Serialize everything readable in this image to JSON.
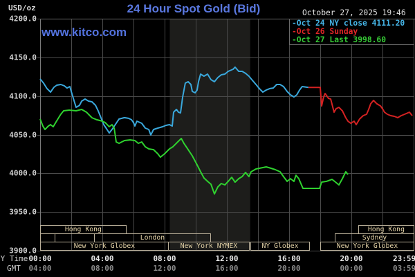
{
  "header": {
    "title": "24 Hour Spot Gold (Bid)",
    "units": "USD/oz",
    "watermark": "www.kitco.com",
    "datetime": "October 27, 2025 19:46"
  },
  "legend": [
    {
      "label": "-Oct 24 NY close 4111.20",
      "color": "#45b4e6"
    },
    {
      "label": "-Oct 26 Sunday",
      "color": "#e02626"
    },
    {
      "label": "-Oct 27 Last 3998.60",
      "color": "#36cc36"
    }
  ],
  "y_axis": {
    "ticks": [
      {
        "label": "4200.0",
        "value": 4200
      },
      {
        "label": "4150.0",
        "value": 4150
      },
      {
        "label": "4100.0",
        "value": 4100
      },
      {
        "label": "4050.0",
        "value": 4050
      },
      {
        "label": "4000.0",
        "value": 4000
      },
      {
        "label": "3950.0",
        "value": 3950
      },
      {
        "label": "3900.0",
        "value": 3900
      }
    ]
  },
  "x_axis": {
    "ny_label": "NY Time",
    "gmt_label": "GMT",
    "ticks": [
      {
        "hour": 0,
        "ny": "00:00",
        "gmt": "04:00"
      },
      {
        "hour": 4,
        "ny": "04:00",
        "gmt": "08:00"
      },
      {
        "hour": 8,
        "ny": "08:00",
        "gmt": "12:00"
      },
      {
        "hour": 12,
        "ny": "12:00",
        "gmt": "16:00"
      },
      {
        "hour": 16,
        "ny": "16:00",
        "gmt": "20:00"
      },
      {
        "hour": 20,
        "ny": "20:00",
        "gmt": "00:00"
      },
      {
        "hour": 24,
        "ny": "23:59",
        "gmt": "03:59"
      }
    ]
  },
  "sessions": [
    {
      "label": "Hong Kong",
      "start": 0,
      "end": 5.5,
      "row": 0
    },
    {
      "label": "",
      "start": 0,
      "end": 0.93,
      "row": 1
    },
    {
      "label": "London",
      "start": 3.47,
      "end": 10.93,
      "row": 1
    },
    {
      "label": "New York Globex",
      "start": 0,
      "end": 8.22,
      "row": 2
    },
    {
      "label": "New York NYMEX",
      "start": 8.22,
      "end": 13.42,
      "row": 2
    },
    {
      "label": "NY Globex",
      "start": 13.51,
      "end": 17.29,
      "row": 2
    },
    {
      "label": "Hong Kong",
      "start": 20.44,
      "end": 24,
      "row": 0
    },
    {
      "label": "Sydney",
      "start": 18.93,
      "end": 24,
      "row": 1
    },
    {
      "label": "New York Globex",
      "start": 18.0,
      "end": 24,
      "row": 2
    }
  ],
  "chart_data": {
    "type": "line",
    "title": "24 Hour Spot Gold (Bid)",
    "xlabel": "NY Time (hours)",
    "ylabel": "USD/oz",
    "xlim": [
      0,
      24
    ],
    "ylim": [
      3900,
      4200
    ],
    "grid": true,
    "legend_position": "top-right",
    "highlight_region": {
      "label": "New York NYMEX",
      "start": 8.33,
      "end": 13.5,
      "color": "#1d1d1b"
    },
    "series": [
      {
        "name": "Oct 24 NY close 4111.20",
        "color": "#3aa8dc",
        "points": [
          [
            0,
            4122.1
          ],
          [
            0.22,
            4116.7
          ],
          [
            0.44,
            4109.6
          ],
          [
            0.67,
            4105.1
          ],
          [
            0.89,
            4111.3
          ],
          [
            1.07,
            4114.0
          ],
          [
            1.33,
            4114.9
          ],
          [
            1.56,
            4113.1
          ],
          [
            1.73,
            4110.4
          ],
          [
            1.91,
            4112.2
          ],
          [
            2.04,
            4103.3
          ],
          [
            2.31,
            4085.4
          ],
          [
            2.53,
            4088.0
          ],
          [
            2.67,
            4093.4
          ],
          [
            2.89,
            4096.1
          ],
          [
            3.11,
            4093.4
          ],
          [
            3.33,
            4092.5
          ],
          [
            3.56,
            4088.0
          ],
          [
            3.73,
            4080.9
          ],
          [
            3.91,
            4071.9
          ],
          [
            4.09,
            4063.0
          ],
          [
            4.27,
            4057.6
          ],
          [
            4.44,
            4052.2
          ],
          [
            4.62,
            4056.7
          ],
          [
            4.89,
            4064.8
          ],
          [
            5.07,
            4070.2
          ],
          [
            5.42,
            4072.0
          ],
          [
            5.69,
            4071.1
          ],
          [
            5.87,
            4069.3
          ],
          [
            6.0,
            4065.7
          ],
          [
            6.09,
            4061.2
          ],
          [
            6.22,
            4067.5
          ],
          [
            6.53,
            4064.8
          ],
          [
            6.76,
            4058.5
          ],
          [
            6.98,
            4056.7
          ],
          [
            7.11,
            4049.6
          ],
          [
            7.29,
            4056.7
          ],
          [
            7.56,
            4058.5
          ],
          [
            7.87,
            4060.3
          ],
          [
            8.09,
            4062.1
          ],
          [
            8.31,
            4063.0
          ],
          [
            8.49,
            4061.2
          ],
          [
            8.58,
            4079.1
          ],
          [
            8.76,
            4082.7
          ],
          [
            8.89,
            4079.1
          ],
          [
            9.02,
            4078.2
          ],
          [
            9.16,
            4098.8
          ],
          [
            9.33,
            4116.7
          ],
          [
            9.51,
            4118.5
          ],
          [
            9.69,
            4114.9
          ],
          [
            9.78,
            4106.0
          ],
          [
            9.96,
            4104.2
          ],
          [
            10.09,
            4107.8
          ],
          [
            10.18,
            4118.5
          ],
          [
            10.31,
            4128.4
          ],
          [
            10.53,
            4125.7
          ],
          [
            10.76,
            4128.4
          ],
          [
            10.98,
            4121.2
          ],
          [
            11.2,
            4118.5
          ],
          [
            11.42,
            4123.9
          ],
          [
            11.64,
            4127.5
          ],
          [
            11.87,
            4128.4
          ],
          [
            12.09,
            4131.9
          ],
          [
            12.4,
            4134.6
          ],
          [
            12.53,
            4137.3
          ],
          [
            12.76,
            4131.9
          ],
          [
            12.98,
            4131.9
          ],
          [
            13.2,
            4129.3
          ],
          [
            13.42,
            4125.7
          ],
          [
            13.64,
            4120.3
          ],
          [
            13.87,
            4114.9
          ],
          [
            14.09,
            4109.6
          ],
          [
            14.31,
            4105.1
          ],
          [
            14.53,
            4107.8
          ],
          [
            14.76,
            4109.6
          ],
          [
            14.98,
            4110.4
          ],
          [
            15.2,
            4114.9
          ],
          [
            15.42,
            4114.9
          ],
          [
            15.64,
            4112.2
          ],
          [
            15.87,
            4106.0
          ],
          [
            16.09,
            4101.5
          ],
          [
            16.31,
            4098.8
          ],
          [
            16.49,
            4101.5
          ],
          [
            16.67,
            4107.8
          ],
          [
            16.84,
            4112.2
          ],
          [
            17.24,
            4111.2
          ]
        ]
      },
      {
        "name": "Oct 26 Sunday",
        "color": "#d42222",
        "points": [
          [
            17.24,
            4111.2
          ],
          [
            18.0,
            4111.2
          ],
          [
            18.09,
            4087.2
          ],
          [
            18.22,
            4098.8
          ],
          [
            18.31,
            4103.3
          ],
          [
            18.53,
            4097.0
          ],
          [
            18.67,
            4096.1
          ],
          [
            18.89,
            4079.1
          ],
          [
            19.02,
            4083.6
          ],
          [
            19.2,
            4085.4
          ],
          [
            19.42,
            4080.9
          ],
          [
            19.64,
            4071.9
          ],
          [
            19.78,
            4067.5
          ],
          [
            19.96,
            4064.8
          ],
          [
            20.18,
            4067.5
          ],
          [
            20.31,
            4063.0
          ],
          [
            20.53,
            4070.2
          ],
          [
            20.76,
            4074.6
          ],
          [
            20.98,
            4076.4
          ],
          [
            21.11,
            4082.7
          ],
          [
            21.24,
            4089.9
          ],
          [
            21.42,
            4094.3
          ],
          [
            21.64,
            4089.9
          ],
          [
            21.87,
            4087.2
          ],
          [
            22.0,
            4083.6
          ],
          [
            22.13,
            4079.1
          ],
          [
            22.31,
            4076.4
          ],
          [
            22.53,
            4074.6
          ],
          [
            22.76,
            4073.7
          ],
          [
            22.98,
            4072.0
          ],
          [
            23.2,
            4074.6
          ],
          [
            23.42,
            4076.4
          ],
          [
            23.73,
            4079.1
          ],
          [
            23.91,
            4074.6
          ]
        ]
      },
      {
        "name": "Oct 27 Last 3998.60",
        "color": "#2fd12f",
        "points": [
          [
            0,
            4070.2
          ],
          [
            0.18,
            4061.2
          ],
          [
            0.31,
            4056.7
          ],
          [
            0.53,
            4061.2
          ],
          [
            0.67,
            4063.0
          ],
          [
            0.84,
            4060.3
          ],
          [
            1.11,
            4069.3
          ],
          [
            1.33,
            4076.4
          ],
          [
            1.51,
            4080.9
          ],
          [
            1.87,
            4081.8
          ],
          [
            2.31,
            4080.9
          ],
          [
            2.67,
            4082.7
          ],
          [
            2.98,
            4079.1
          ],
          [
            3.33,
            4071.9
          ],
          [
            3.64,
            4069.3
          ],
          [
            4.0,
            4067.5
          ],
          [
            4.18,
            4065.7
          ],
          [
            4.44,
            4060.3
          ],
          [
            4.62,
            4063.0
          ],
          [
            4.76,
            4058.5
          ],
          [
            4.89,
            4040.6
          ],
          [
            5.07,
            4038.8
          ],
          [
            5.42,
            4042.4
          ],
          [
            5.78,
            4043.3
          ],
          [
            6.09,
            4042.4
          ],
          [
            6.31,
            4038.8
          ],
          [
            6.53,
            4040.6
          ],
          [
            6.76,
            4034.3
          ],
          [
            6.98,
            4031.6
          ],
          [
            7.29,
            4030.7
          ],
          [
            7.56,
            4025.4
          ],
          [
            7.73,
            4020.9
          ],
          [
            8.0,
            4025.4
          ],
          [
            8.31,
            4031.6
          ],
          [
            8.53,
            4034.3
          ],
          [
            8.84,
            4040.6
          ],
          [
            9.07,
            4045.1
          ],
          [
            9.24,
            4038.8
          ],
          [
            9.42,
            4033.4
          ],
          [
            9.78,
            4022.7
          ],
          [
            10.09,
            4011.0
          ],
          [
            10.31,
            4002.1
          ],
          [
            10.53,
            3994.0
          ],
          [
            10.76,
            3989.6
          ],
          [
            10.98,
            3986.0
          ],
          [
            11.2,
            3973.4
          ],
          [
            11.42,
            3982.4
          ],
          [
            11.64,
            3986.9
          ],
          [
            11.87,
            3985.1
          ],
          [
            12.09,
            3989.6
          ],
          [
            12.31,
            3994.9
          ],
          [
            12.53,
            3988.7
          ],
          [
            12.76,
            3993.1
          ],
          [
            12.98,
            3995.8
          ],
          [
            13.2,
            4001.2
          ],
          [
            13.42,
            3995.8
          ],
          [
            13.56,
            4002.1
          ],
          [
            13.87,
            4005.7
          ],
          [
            14.31,
            4007.5
          ],
          [
            14.53,
            4008.4
          ],
          [
            14.84,
            4006.6
          ],
          [
            15.11,
            4004.8
          ],
          [
            15.42,
            4002.1
          ],
          [
            15.64,
            3995.8
          ],
          [
            15.87,
            3989.6
          ],
          [
            16.09,
            3993.1
          ],
          [
            16.31,
            3989.6
          ],
          [
            16.44,
            3997.6
          ],
          [
            16.62,
            3993.1
          ],
          [
            16.89,
            3980.6
          ],
          [
            17.96,
            3980.6
          ],
          [
            18.09,
            3988.7
          ],
          [
            18.4,
            3989.6
          ],
          [
            18.76,
            3992.2
          ],
          [
            18.98,
            3988.7
          ],
          [
            19.2,
            3985.1
          ],
          [
            19.42,
            3993.1
          ],
          [
            19.64,
            4002.1
          ],
          [
            19.78,
            3998.6
          ]
        ]
      }
    ]
  }
}
